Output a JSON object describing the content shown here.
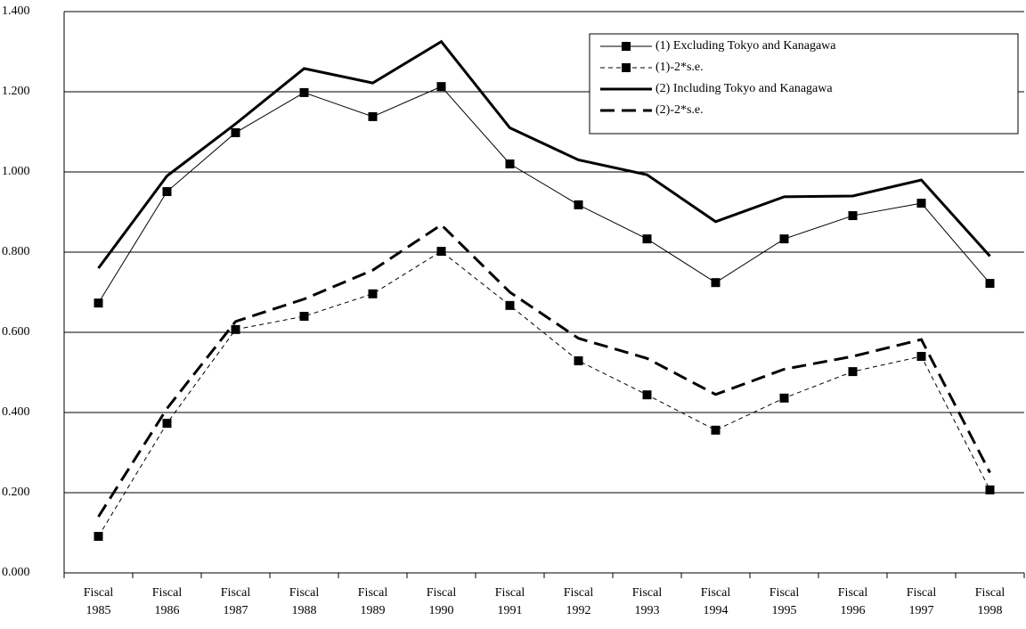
{
  "chart_data": {
    "type": "line",
    "categories": [
      "Fiscal 1985",
      "Fiscal 1986",
      "Fiscal 1987",
      "Fiscal 1988",
      "Fiscal 1989",
      "Fiscal 1990",
      "Fiscal 1991",
      "Fiscal 1992",
      "Fiscal 1993",
      "Fiscal 1994",
      "Fiscal 1995",
      "Fiscal 1996",
      "Fiscal 1997",
      "Fiscal 1998"
    ],
    "series": [
      {
        "name": "(1) Excluding Tokyo and Kanagawa",
        "color": "#000000",
        "line_style": "solid",
        "line_width": 1,
        "marker": "square",
        "values": [
          0.673,
          0.951,
          1.098,
          1.198,
          1.138,
          1.213,
          1.02,
          0.918,
          0.833,
          0.724,
          0.833,
          0.891,
          0.922,
          0.722
        ]
      },
      {
        "name": "(1)-2*s.e.",
        "color": "#000000",
        "line_style": "dashed",
        "line_width": 1,
        "marker": "square",
        "values": [
          0.091,
          0.373,
          0.607,
          0.64,
          0.696,
          0.802,
          0.667,
          0.529,
          0.444,
          0.356,
          0.436,
          0.502,
          0.54,
          0.207
        ]
      },
      {
        "name": "(2) Including Tokyo and Kanagawa",
        "color": "#000000",
        "line_style": "solid",
        "line_width": 3,
        "marker": "none",
        "values": [
          0.76,
          0.99,
          1.12,
          1.258,
          1.222,
          1.325,
          1.11,
          1.03,
          0.993,
          0.876,
          0.938,
          0.94,
          0.98,
          0.79
        ]
      },
      {
        "name": "(2)-2*s.e.",
        "color": "#000000",
        "line_style": "long-dashed",
        "line_width": 3,
        "marker": "none",
        "values": [
          0.14,
          0.41,
          0.627,
          0.683,
          0.755,
          0.868,
          0.7,
          0.585,
          0.535,
          0.445,
          0.508,
          0.54,
          0.582,
          0.25
        ]
      }
    ],
    "ylim": [
      0,
      1.4
    ],
    "yticks": [
      {
        "value": 0,
        "label": "0.000"
      },
      {
        "value": 0.2,
        "label": "0.200"
      },
      {
        "value": 0.4,
        "label": "0.400"
      },
      {
        "value": 0.6,
        "label": "0.600"
      },
      {
        "value": 0.8,
        "label": "0.800"
      },
      {
        "value": 1.0,
        "label": "1.000"
      },
      {
        "value": 1.2,
        "label": "1.200"
      },
      {
        "value": 1.4,
        "label": "1.400"
      }
    ],
    "grid": true,
    "legend": "top-right"
  }
}
